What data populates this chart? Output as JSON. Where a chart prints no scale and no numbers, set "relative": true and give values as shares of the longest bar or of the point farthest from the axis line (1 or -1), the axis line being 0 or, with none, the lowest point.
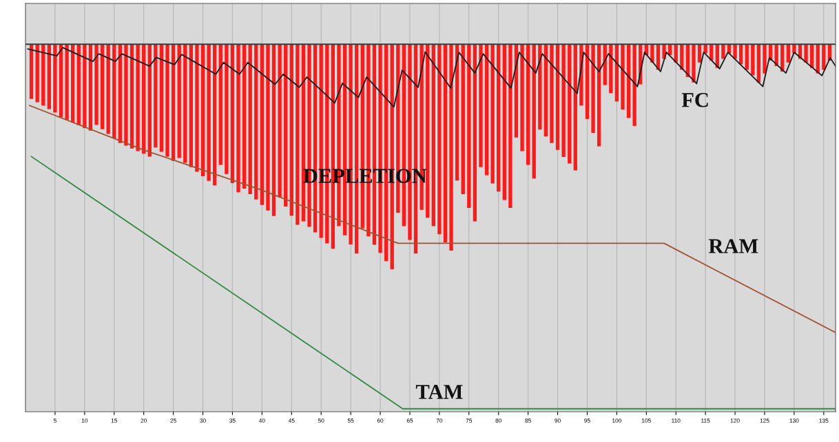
{
  "chart_data": {
    "type": "bar",
    "relative": true,
    "tick_labels": "x",
    "grid": "x",
    "xlim": [
      0,
      137
    ],
    "xticks": [
      5,
      10,
      15,
      20,
      25,
      30,
      35,
      40,
      45,
      50,
      55,
      60,
      65,
      70,
      75,
      80,
      85,
      90,
      95,
      100,
      105,
      110,
      115,
      120,
      125,
      130,
      135
    ],
    "ref_lines": [
      {
        "axis": "y",
        "value": 0,
        "color": "#3a3a3a"
      }
    ],
    "series": [
      {
        "color": "#ff1a1a",
        "x": [
          1,
          2,
          3,
          4,
          5,
          6,
          7,
          8,
          9,
          10,
          11,
          12,
          13,
          14,
          15,
          16,
          17,
          18,
          19,
          20,
          21,
          22,
          23,
          24,
          25,
          26,
          27,
          28,
          29,
          30,
          31,
          32,
          33,
          34,
          35,
          36,
          37,
          38,
          39,
          40,
          41,
          42,
          43,
          44,
          45,
          46,
          47,
          48,
          49,
          50,
          51,
          52,
          53,
          54,
          55,
          56,
          57,
          58,
          59,
          60,
          61,
          62,
          63,
          64,
          65,
          66,
          67,
          68,
          69,
          70,
          71,
          72,
          73,
          74,
          75,
          76,
          77,
          78,
          79,
          80,
          81,
          82,
          83,
          84,
          85,
          86,
          87,
          88,
          89,
          90,
          91,
          92,
          93,
          94,
          95,
          96,
          97,
          98,
          99,
          100,
          101,
          102,
          103,
          104,
          105,
          106,
          107,
          108,
          109,
          110,
          111,
          112,
          113,
          114,
          115,
          116,
          117,
          118,
          119,
          120,
          121,
          122,
          123,
          124,
          125,
          126,
          127,
          128,
          129,
          130,
          131,
          132,
          133,
          134,
          135,
          136
        ],
        "values": [
          -0.15,
          -0.159,
          -0.168,
          -0.178,
          -0.187,
          -0.2,
          -0.207,
          -0.215,
          -0.222,
          -0.23,
          -0.237,
          -0.221,
          -0.233,
          -0.246,
          -0.258,
          -0.271,
          -0.278,
          -0.286,
          -0.293,
          -0.3,
          -0.308,
          -0.283,
          -0.295,
          -0.308,
          -0.32,
          -0.312,
          -0.325,
          -0.337,
          -0.35,
          -0.362,
          -0.375,
          -0.387,
          -0.331,
          -0.356,
          -0.381,
          -0.406,
          -0.396,
          -0.411,
          -0.426,
          -0.441,
          -0.456,
          -0.471,
          -0.42,
          -0.445,
          -0.47,
          -0.495,
          -0.486,
          -0.501,
          -0.516,
          -0.531,
          -0.546,
          -0.561,
          -0.499,
          -0.524,
          -0.549,
          -0.574,
          -0.505,
          -0.527,
          -0.55,
          -0.572,
          -0.595,
          -0.617,
          -0.462,
          -0.499,
          -0.537,
          -0.574,
          -0.454,
          -0.476,
          -0.499,
          -0.521,
          -0.544,
          -0.566,
          -0.374,
          -0.411,
          -0.449,
          -0.486,
          -0.337,
          -0.359,
          -0.382,
          -0.404,
          -0.427,
          -0.449,
          -0.256,
          -0.293,
          -0.331,
          -0.368,
          -0.234,
          -0.253,
          -0.271,
          -0.29,
          -0.309,
          -0.327,
          -0.346,
          -0.168,
          -0.205,
          -0.243,
          -0.28,
          -0.112,
          -0.134,
          -0.157,
          -0.179,
          -0.202,
          -0.224,
          -0.11,
          -0.03,
          -0.05,
          -0.07,
          -0.04,
          -0.03,
          -0.05,
          -0.07,
          -0.09,
          -0.105,
          -0.05,
          -0.025,
          -0.045,
          -0.065,
          -0.04,
          -0.025,
          -0.04,
          -0.055,
          -0.07,
          -0.085,
          -0.105,
          -0.08,
          -0.045,
          -0.06,
          -0.075,
          -0.05,
          -0.025,
          -0.04,
          -0.05,
          -0.065,
          -0.08,
          -0.07,
          -0.045
        ]
      },
      {
        "type": "line",
        "color": "#1a1a1a",
        "x": [
          0.4,
          5.3,
          6.3,
          11.4,
          12.4,
          15.2,
          16.3,
          21.0,
          22.1,
          25.2,
          26.4,
          32.2,
          33.5,
          36.2,
          37.6,
          42.2,
          43.6,
          46.3,
          47.6,
          52.3,
          53.6,
          56.3,
          57.7,
          62.3,
          63.7,
          66.4,
          67.6,
          71.9,
          73.3,
          76.0,
          77.4,
          82.1,
          83.5,
          86.3,
          87.4,
          93.3,
          94.4,
          97.0,
          98.6,
          103.5,
          104.7,
          107.4,
          108.4,
          113.5,
          114.7,
          117.4,
          118.8,
          124.7,
          125.8,
          128.6,
          130.0,
          134.7,
          136.1,
          137.0
        ],
        "values": [
          -0.013,
          -0.032,
          -0.009,
          -0.047,
          -0.026,
          -0.047,
          -0.026,
          -0.06,
          -0.036,
          -0.056,
          -0.028,
          -0.082,
          -0.05,
          -0.082,
          -0.05,
          -0.11,
          -0.082,
          -0.118,
          -0.09,
          -0.161,
          -0.107,
          -0.146,
          -0.09,
          -0.172,
          -0.071,
          -0.118,
          -0.021,
          -0.12,
          -0.022,
          -0.079,
          -0.026,
          -0.12,
          -0.022,
          -0.079,
          -0.026,
          -0.135,
          -0.022,
          -0.075,
          -0.026,
          -0.116,
          -0.022,
          -0.075,
          -0.022,
          -0.108,
          -0.022,
          -0.067,
          -0.022,
          -0.116,
          -0.037,
          -0.079,
          -0.022,
          -0.086,
          -0.037,
          -0.06
        ]
      },
      {
        "type": "line",
        "color": "#a0522d",
        "x": [
          0.7,
          20,
          40,
          63,
          108,
          137
        ],
        "values": [
          -0.168,
          -0.29,
          -0.4,
          -0.546,
          -0.546,
          -0.791
        ]
      },
      {
        "type": "line",
        "color": "#2e8b3e",
        "x": [
          1,
          63.8,
          137
        ],
        "values": [
          -0.308,
          -1.0,
          -1.0
        ]
      }
    ],
    "annotations": [
      "FC",
      "DEPLETION",
      "RAM",
      "TAM"
    ]
  }
}
